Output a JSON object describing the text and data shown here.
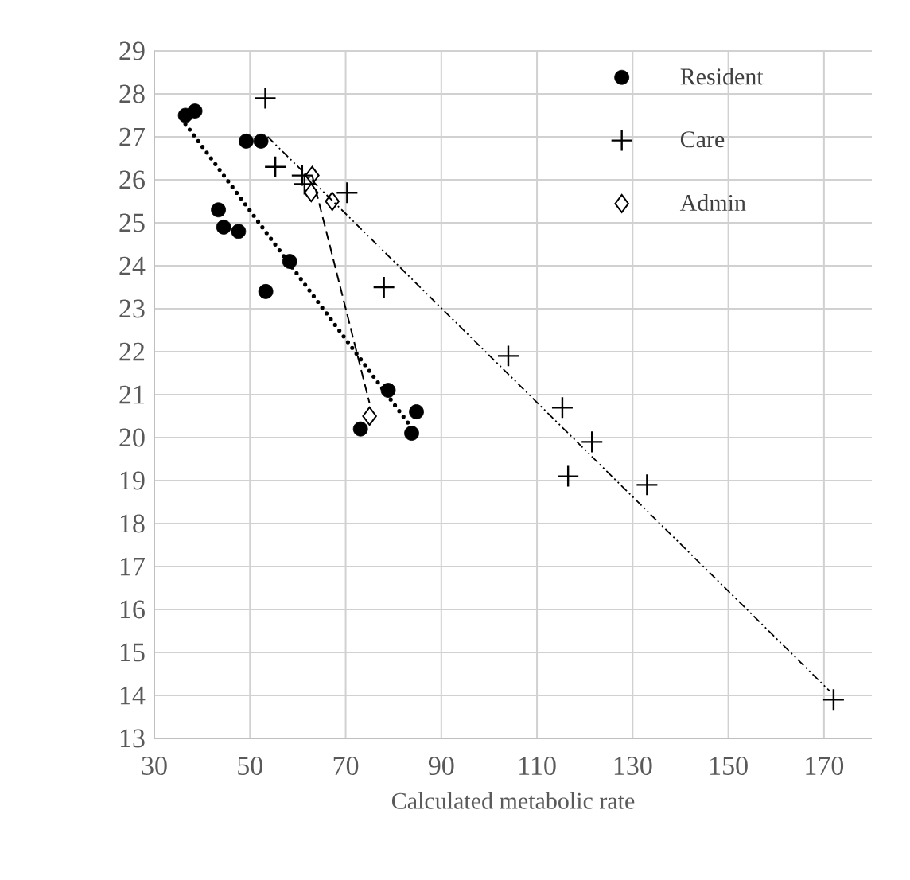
{
  "chart_data": {
    "type": "scatter",
    "xlabel": "Calculated metabolic rate",
    "xlim": [
      30,
      180
    ],
    "xticks": [
      30,
      50,
      70,
      90,
      110,
      130,
      150,
      170
    ],
    "ylim": [
      13,
      29
    ],
    "yticks": [
      13,
      14,
      15,
      16,
      17,
      18,
      19,
      20,
      21,
      22,
      23,
      24,
      25,
      26,
      27,
      28,
      29
    ],
    "grid": true,
    "legend": "top right",
    "series": [
      {
        "name": "Resident",
        "color": "#000000",
        "marker": "circle",
        "x": [
          36.5,
          38.5,
          49.2,
          52.3,
          43.4,
          44.5,
          47.6,
          58.3,
          53.3,
          78.9,
          84.8,
          73.1,
          83.8
        ],
        "values": [
          27.5,
          27.6,
          26.9,
          26.9,
          25.3,
          24.9,
          24.8,
          24.1,
          23.4,
          21.1,
          20.6,
          20.2,
          20.1
        ]
      },
      {
        "name": "Care",
        "color": "#000000",
        "marker": "cross",
        "x": [
          53.2,
          55.3,
          60.9,
          61.4,
          70.3,
          78,
          104,
          115.3,
          121.5,
          116.5,
          133,
          172
        ],
        "values": [
          27.9,
          26.3,
          26.1,
          25.9,
          25.7,
          23.5,
          21.9,
          20.7,
          19.9,
          19.1,
          18.9,
          13.9
        ]
      },
      {
        "name": "Admin",
        "color": "#000000",
        "marker": "diamond",
        "x": [
          63,
          62.8,
          67.2,
          75
        ],
        "values": [
          26.1,
          25.7,
          25.5,
          20.5
        ]
      },
      {
        "type": "line",
        "color": "#000000",
        "line_style": "dotted",
        "x": [
          36.5,
          84
        ],
        "values": [
          27.3,
          20.2
        ]
      },
      {
        "type": "line",
        "color": "#000000",
        "line_style": "dashed",
        "x": [
          63,
          75
        ],
        "values": [
          26.1,
          20.8
        ]
      },
      {
        "type": "line",
        "color": "#000000",
        "line_style": "dashdotdotted",
        "x": [
          53.7,
          171.2
        ],
        "values": [
          27,
          14.1
        ]
      }
    ]
  }
}
